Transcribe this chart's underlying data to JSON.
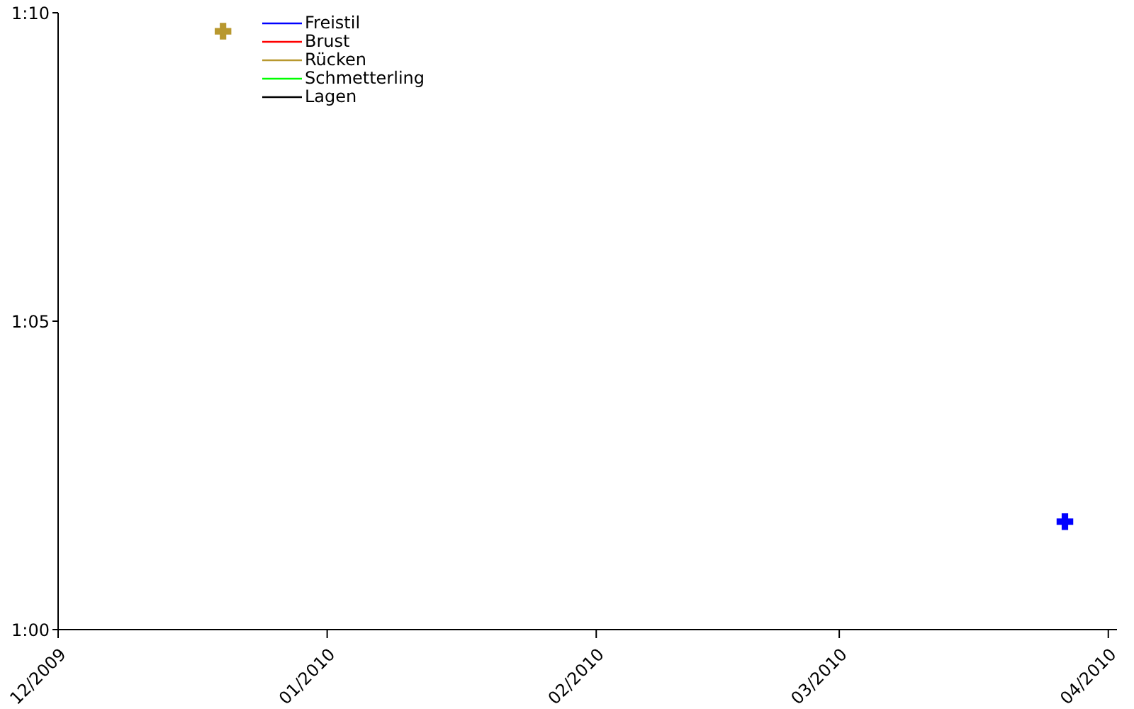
{
  "chart_data": {
    "type": "scatter",
    "marker": "cross",
    "legend": "top left",
    "grid": false,
    "xlim": [
      "2009-12-01",
      "2010-04-02"
    ],
    "xticks": [
      {
        "value": "2009-12-01",
        "label": "12/2009"
      },
      {
        "value": "2010-01-01",
        "label": "01/2010"
      },
      {
        "value": "2010-02-01",
        "label": "02/2010"
      },
      {
        "value": "2010-03-01",
        "label": "03/2010"
      },
      {
        "value": "2010-04-01",
        "label": "04/2010"
      }
    ],
    "ylim": [
      60,
      70
    ],
    "yticks": [
      {
        "value": 60,
        "label": "1:00"
      },
      {
        "value": 65,
        "label": "1:05"
      },
      {
        "value": 70,
        "label": "1:10"
      }
    ],
    "series": [
      {
        "name": "Freistil",
        "color": "#0000ff",
        "x": [
          "2010-03-27"
        ],
        "values": [
          61.75
        ]
      },
      {
        "name": "Brust",
        "color": "#ff0000"
      },
      {
        "name": "Rücken",
        "color": "#b8982f",
        "x": [
          "2009-12-20"
        ],
        "values": [
          69.7
        ]
      },
      {
        "name": "Schmetterling",
        "color": "#00ff00"
      },
      {
        "name": "Lagen",
        "color": "#000000"
      }
    ]
  }
}
